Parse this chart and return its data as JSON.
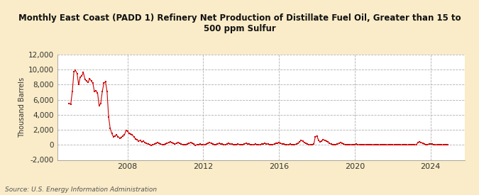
{
  "title": "Monthly East Coast (PADD 1) Refinery Net Production of Distillate Fuel Oil, Greater than 15 to\n500 ppm Sulfur",
  "ylabel": "Thousand Barrels",
  "source": "Source: U.S. Energy Information Administration",
  "fig_bg_color": "#faecc8",
  "plot_bg_color": "#ffffff",
  "line_color": "#cc0000",
  "ylim": [
    -2000,
    12000
  ],
  "yticks": [
    -2000,
    0,
    2000,
    4000,
    6000,
    8000,
    10000,
    12000
  ],
  "xtick_years": [
    2008,
    2012,
    2016,
    2020,
    2024
  ],
  "xlim_left": 2004.3,
  "xlim_right": 2025.8,
  "data": [
    [
      2004.917,
      5500
    ],
    [
      2005.0,
      5400
    ],
    [
      2005.083,
      7100
    ],
    [
      2005.167,
      9700
    ],
    [
      2005.25,
      9900
    ],
    [
      2005.333,
      9500
    ],
    [
      2005.417,
      8000
    ],
    [
      2005.5,
      9000
    ],
    [
      2005.583,
      9200
    ],
    [
      2005.667,
      9600
    ],
    [
      2005.75,
      8700
    ],
    [
      2005.833,
      8500
    ],
    [
      2005.917,
      8300
    ],
    [
      2006.0,
      8800
    ],
    [
      2006.083,
      8500
    ],
    [
      2006.167,
      8200
    ],
    [
      2006.25,
      7100
    ],
    [
      2006.333,
      7200
    ],
    [
      2006.417,
      6900
    ],
    [
      2006.5,
      5200
    ],
    [
      2006.583,
      5500
    ],
    [
      2006.667,
      7100
    ],
    [
      2006.75,
      8200
    ],
    [
      2006.833,
      8400
    ],
    [
      2006.917,
      7100
    ],
    [
      2007.0,
      3700
    ],
    [
      2007.083,
      2200
    ],
    [
      2007.167,
      1500
    ],
    [
      2007.25,
      1100
    ],
    [
      2007.333,
      1200
    ],
    [
      2007.417,
      1300
    ],
    [
      2007.5,
      1100
    ],
    [
      2007.583,
      900
    ],
    [
      2007.667,
      1000
    ],
    [
      2007.75,
      1200
    ],
    [
      2007.833,
      1300
    ],
    [
      2007.917,
      1900
    ],
    [
      2008.0,
      1800
    ],
    [
      2008.083,
      1500
    ],
    [
      2008.167,
      1400
    ],
    [
      2008.25,
      1300
    ],
    [
      2008.333,
      1100
    ],
    [
      2008.417,
      800
    ],
    [
      2008.5,
      700
    ],
    [
      2008.583,
      500
    ],
    [
      2008.667,
      600
    ],
    [
      2008.75,
      400
    ],
    [
      2008.833,
      500
    ],
    [
      2008.917,
      300
    ],
    [
      2009.0,
      200
    ],
    [
      2009.083,
      100
    ],
    [
      2009.167,
      50
    ],
    [
      2009.25,
      -100
    ],
    [
      2009.333,
      0
    ],
    [
      2009.417,
      100
    ],
    [
      2009.5,
      200
    ],
    [
      2009.583,
      300
    ],
    [
      2009.667,
      200
    ],
    [
      2009.75,
      100
    ],
    [
      2009.833,
      50
    ],
    [
      2009.917,
      0
    ],
    [
      2010.0,
      100
    ],
    [
      2010.083,
      200
    ],
    [
      2010.167,
      300
    ],
    [
      2010.25,
      400
    ],
    [
      2010.333,
      300
    ],
    [
      2010.417,
      200
    ],
    [
      2010.5,
      100
    ],
    [
      2010.583,
      200
    ],
    [
      2010.667,
      300
    ],
    [
      2010.75,
      200
    ],
    [
      2010.833,
      100
    ],
    [
      2010.917,
      50
    ],
    [
      2011.0,
      0
    ],
    [
      2011.083,
      50
    ],
    [
      2011.167,
      100
    ],
    [
      2011.25,
      200
    ],
    [
      2011.333,
      300
    ],
    [
      2011.417,
      200
    ],
    [
      2011.5,
      100
    ],
    [
      2011.583,
      -50
    ],
    [
      2011.667,
      0
    ],
    [
      2011.75,
      50
    ],
    [
      2011.833,
      100
    ],
    [
      2011.917,
      50
    ],
    [
      2012.0,
      0
    ],
    [
      2012.083,
      50
    ],
    [
      2012.167,
      100
    ],
    [
      2012.25,
      200
    ],
    [
      2012.333,
      300
    ],
    [
      2012.417,
      200
    ],
    [
      2012.5,
      100
    ],
    [
      2012.583,
      50
    ],
    [
      2012.667,
      0
    ],
    [
      2012.75,
      100
    ],
    [
      2012.833,
      200
    ],
    [
      2012.917,
      150
    ],
    [
      2013.0,
      100
    ],
    [
      2013.083,
      50
    ],
    [
      2013.167,
      0
    ],
    [
      2013.25,
      100
    ],
    [
      2013.333,
      200
    ],
    [
      2013.417,
      150
    ],
    [
      2013.5,
      100
    ],
    [
      2013.583,
      50
    ],
    [
      2013.667,
      0
    ],
    [
      2013.75,
      50
    ],
    [
      2013.833,
      100
    ],
    [
      2013.917,
      50
    ],
    [
      2014.0,
      0
    ],
    [
      2014.083,
      50
    ],
    [
      2014.167,
      100
    ],
    [
      2014.25,
      200
    ],
    [
      2014.333,
      150
    ],
    [
      2014.417,
      100
    ],
    [
      2014.5,
      50
    ],
    [
      2014.583,
      0
    ],
    [
      2014.667,
      50
    ],
    [
      2014.75,
      100
    ],
    [
      2014.833,
      50
    ],
    [
      2014.917,
      0
    ],
    [
      2015.0,
      50
    ],
    [
      2015.083,
      100
    ],
    [
      2015.167,
      150
    ],
    [
      2015.25,
      200
    ],
    [
      2015.333,
      150
    ],
    [
      2015.417,
      100
    ],
    [
      2015.5,
      50
    ],
    [
      2015.583,
      0
    ],
    [
      2015.667,
      50
    ],
    [
      2015.75,
      100
    ],
    [
      2015.833,
      200
    ],
    [
      2015.917,
      250
    ],
    [
      2016.0,
      300
    ],
    [
      2016.083,
      200
    ],
    [
      2016.167,
      150
    ],
    [
      2016.25,
      100
    ],
    [
      2016.333,
      50
    ],
    [
      2016.417,
      0
    ],
    [
      2016.5,
      50
    ],
    [
      2016.583,
      100
    ],
    [
      2016.667,
      50
    ],
    [
      2016.75,
      0
    ],
    [
      2016.833,
      50
    ],
    [
      2016.917,
      100
    ],
    [
      2017.0,
      200
    ],
    [
      2017.083,
      400
    ],
    [
      2017.167,
      600
    ],
    [
      2017.25,
      500
    ],
    [
      2017.333,
      300
    ],
    [
      2017.417,
      200
    ],
    [
      2017.5,
      100
    ],
    [
      2017.583,
      50
    ],
    [
      2017.667,
      0
    ],
    [
      2017.75,
      50
    ],
    [
      2017.833,
      100
    ],
    [
      2017.917,
      1100
    ],
    [
      2018.0,
      1200
    ],
    [
      2018.083,
      600
    ],
    [
      2018.167,
      400
    ],
    [
      2018.25,
      500
    ],
    [
      2018.333,
      700
    ],
    [
      2018.417,
      600
    ],
    [
      2018.5,
      500
    ],
    [
      2018.583,
      400
    ],
    [
      2018.667,
      200
    ],
    [
      2018.75,
      100
    ],
    [
      2018.833,
      50
    ],
    [
      2018.917,
      0
    ],
    [
      2019.0,
      50
    ],
    [
      2019.083,
      100
    ],
    [
      2019.167,
      200
    ],
    [
      2019.25,
      300
    ],
    [
      2019.333,
      200
    ],
    [
      2019.417,
      100
    ],
    [
      2019.5,
      50
    ],
    [
      2019.583,
      0
    ],
    [
      2019.667,
      50
    ],
    [
      2019.75,
      0
    ],
    [
      2019.833,
      50
    ],
    [
      2019.917,
      0
    ],
    [
      2020.0,
      50
    ],
    [
      2020.083,
      100
    ],
    [
      2020.167,
      50
    ],
    [
      2020.25,
      0
    ],
    [
      2020.333,
      50
    ],
    [
      2020.417,
      0
    ],
    [
      2020.5,
      50
    ],
    [
      2020.583,
      0
    ],
    [
      2020.667,
      50
    ],
    [
      2020.75,
      0
    ],
    [
      2020.833,
      0
    ],
    [
      2020.917,
      0
    ],
    [
      2021.0,
      0
    ],
    [
      2021.083,
      0
    ],
    [
      2021.167,
      0
    ],
    [
      2021.25,
      0
    ],
    [
      2021.333,
      0
    ],
    [
      2021.417,
      0
    ],
    [
      2021.5,
      0
    ],
    [
      2021.583,
      0
    ],
    [
      2021.667,
      0
    ],
    [
      2021.75,
      0
    ],
    [
      2021.833,
      0
    ],
    [
      2021.917,
      0
    ],
    [
      2022.0,
      0
    ],
    [
      2022.083,
      0
    ],
    [
      2022.167,
      0
    ],
    [
      2022.25,
      0
    ],
    [
      2022.333,
      0
    ],
    [
      2022.417,
      0
    ],
    [
      2022.5,
      0
    ],
    [
      2022.583,
      0
    ],
    [
      2022.667,
      0
    ],
    [
      2022.75,
      0
    ],
    [
      2022.833,
      0
    ],
    [
      2022.917,
      0
    ],
    [
      2023.0,
      0
    ],
    [
      2023.083,
      0
    ],
    [
      2023.167,
      0
    ],
    [
      2023.25,
      50
    ],
    [
      2023.333,
      300
    ],
    [
      2023.417,
      400
    ],
    [
      2023.5,
      300
    ],
    [
      2023.583,
      200
    ],
    [
      2023.667,
      100
    ],
    [
      2023.75,
      50
    ],
    [
      2023.833,
      50
    ],
    [
      2023.917,
      100
    ],
    [
      2024.0,
      150
    ],
    [
      2024.083,
      100
    ],
    [
      2024.167,
      50
    ],
    [
      2024.25,
      0
    ],
    [
      2024.333,
      0
    ],
    [
      2024.417,
      0
    ],
    [
      2024.5,
      0
    ],
    [
      2024.583,
      0
    ],
    [
      2024.667,
      0
    ],
    [
      2024.75,
      0
    ],
    [
      2024.833,
      0
    ],
    [
      2024.917,
      0
    ]
  ]
}
